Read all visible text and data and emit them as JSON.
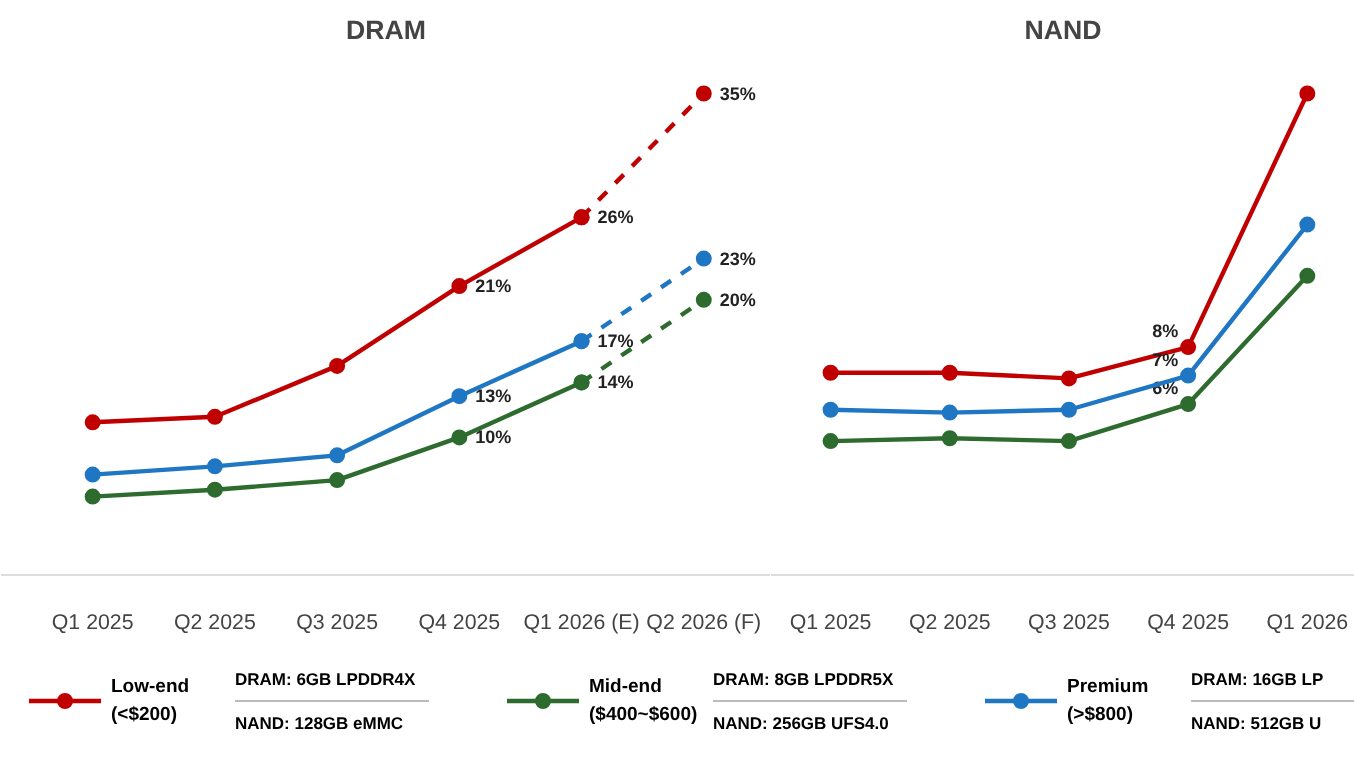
{
  "chart_data": [
    {
      "type": "line",
      "title": "DRAM",
      "categories": [
        "Q1 2025",
        "Q2 2025",
        "Q3 2025",
        "Q4 2025",
        "Q1 2026 (E)",
        "Q2 2026 (F)"
      ],
      "marker": "circle",
      "legend": "bottom",
      "series": [
        {
          "name": "Low-end\n(<$200)",
          "color": "#c00000",
          "values": [
            11.1,
            11.5,
            15.2,
            21,
            26,
            null
          ],
          "value_labels": [
            null,
            null,
            null,
            "21%",
            "26%",
            null
          ]
        },
        {
          "name": "Mid-end\n($400~$600)",
          "color": "#2e6b2e",
          "values": [
            5.7,
            6.2,
            6.9,
            10,
            14,
            null
          ],
          "value_labels": [
            null,
            null,
            null,
            "10%",
            "14%",
            null
          ]
        },
        {
          "name": "Premium\n(>$800)",
          "color": "#1f77c4",
          "values": [
            7.3,
            7.9,
            8.7,
            13,
            17,
            null
          ],
          "value_labels": [
            null,
            null,
            null,
            "13%",
            "17%",
            null
          ]
        },
        {
          "color": "#c00000",
          "line_style": "dashed",
          "values": [
            null,
            null,
            null,
            null,
            26,
            35
          ],
          "value_labels": [
            null,
            null,
            null,
            null,
            null,
            "35%"
          ]
        },
        {
          "color": "#2e6b2e",
          "line_style": "dashed",
          "values": [
            null,
            null,
            null,
            null,
            14,
            20
          ],
          "value_labels": [
            null,
            null,
            null,
            null,
            null,
            "20%"
          ]
        },
        {
          "color": "#1f77c4",
          "line_style": "dashed",
          "values": [
            null,
            null,
            null,
            null,
            17,
            23
          ],
          "value_labels": [
            null,
            null,
            null,
            null,
            null,
            "23%"
          ]
        }
      ],
      "annotations": [
        "DRAM: 6GB LPDDR4X",
        "NAND: 128GB eMMC",
        "DRAM: 8GB LPDDR5X",
        "NAND: 256GB UFS4.0",
        "DRAM: 16GB LP",
        "NAND: 512GB U"
      ]
    },
    {
      "type": "line",
      "title": "NAND",
      "categories": [
        "Q1 2025",
        "Q2 2025",
        "Q3 2025",
        "Q4 2025",
        "Q1 2026"
      ],
      "marker": "circle",
      "series": [
        {
          "color": "#c00000",
          "values": [
            7.1,
            7.1,
            6.9,
            8,
            16.9
          ],
          "value_labels": [
            null,
            null,
            null,
            "8%",
            null
          ]
        },
        {
          "color": "#2e6b2e",
          "values": [
            4.7,
            4.8,
            4.7,
            6,
            10.5
          ],
          "value_labels": [
            null,
            null,
            null,
            "6%",
            null
          ]
        },
        {
          "color": "#1f77c4",
          "values": [
            5.8,
            5.7,
            5.8,
            7,
            12.3
          ],
          "value_labels": [
            null,
            null,
            null,
            "7%",
            null
          ]
        }
      ]
    }
  ]
}
